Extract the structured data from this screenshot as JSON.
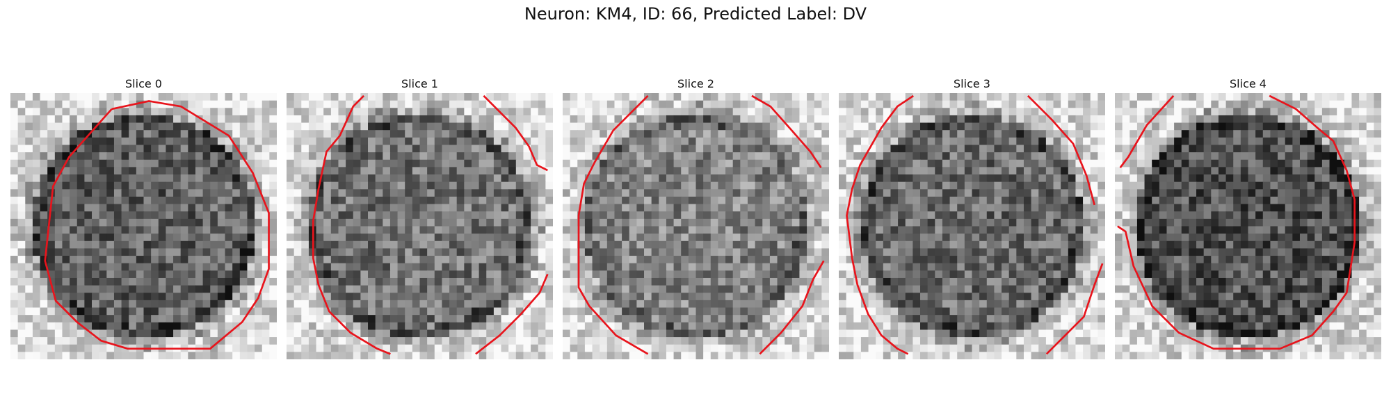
{
  "figure": {
    "title": "Neuron: KM4, ID: 66, Predicted Label: DV"
  },
  "panels": [
    {
      "title": "Slice 0",
      "seed": 11,
      "darkness": 0.62,
      "contours": [
        [
          [
            0.38,
            0.06
          ],
          [
            0.52,
            0.03
          ],
          [
            0.64,
            0.05
          ],
          [
            0.82,
            0.16
          ],
          [
            0.91,
            0.3
          ],
          [
            0.97,
            0.45
          ],
          [
            0.97,
            0.66
          ],
          [
            0.93,
            0.77
          ],
          [
            0.87,
            0.86
          ],
          [
            0.75,
            0.96
          ],
          [
            0.44,
            0.96
          ],
          [
            0.34,
            0.93
          ],
          [
            0.25,
            0.86
          ],
          [
            0.17,
            0.78
          ],
          [
            0.13,
            0.63
          ],
          [
            0.16,
            0.35
          ],
          [
            0.22,
            0.24
          ],
          [
            0.3,
            0.15
          ],
          [
            0.38,
            0.06
          ]
        ]
      ]
    },
    {
      "title": "Slice 1",
      "seed": 23,
      "darkness": 0.55,
      "contours": [
        [
          [
            0.29,
            0.01
          ],
          [
            0.25,
            0.05
          ],
          [
            0.2,
            0.16
          ],
          [
            0.15,
            0.22
          ],
          [
            0.12,
            0.36
          ],
          [
            0.1,
            0.48
          ],
          [
            0.1,
            0.62
          ],
          [
            0.12,
            0.72
          ],
          [
            0.16,
            0.82
          ],
          [
            0.24,
            0.9
          ],
          [
            0.34,
            0.96
          ],
          [
            0.39,
            0.98
          ]
        ],
        [
          [
            0.74,
            0.01
          ],
          [
            0.8,
            0.07
          ],
          [
            0.86,
            0.13
          ],
          [
            0.91,
            0.2
          ],
          [
            0.94,
            0.27
          ],
          [
            0.98,
            0.29
          ]
        ],
        [
          [
            0.98,
            0.68
          ],
          [
            0.95,
            0.75
          ],
          [
            0.88,
            0.83
          ],
          [
            0.8,
            0.91
          ],
          [
            0.71,
            0.98
          ]
        ]
      ]
    },
    {
      "title": "Slice 2",
      "seed": 37,
      "darkness": 0.48,
      "contours": [
        [
          [
            0.32,
            0.01
          ],
          [
            0.19,
            0.14
          ],
          [
            0.12,
            0.26
          ],
          [
            0.08,
            0.34
          ],
          [
            0.06,
            0.46
          ],
          [
            0.06,
            0.73
          ],
          [
            0.1,
            0.8
          ],
          [
            0.2,
            0.91
          ],
          [
            0.32,
            0.98
          ]
        ],
        [
          [
            0.71,
            0.01
          ],
          [
            0.78,
            0.05
          ],
          [
            0.86,
            0.14
          ],
          [
            0.93,
            0.22
          ],
          [
            0.97,
            0.28
          ]
        ],
        [
          [
            0.98,
            0.63
          ],
          [
            0.94,
            0.7
          ],
          [
            0.9,
            0.8
          ],
          [
            0.82,
            0.9
          ],
          [
            0.74,
            0.98
          ]
        ]
      ]
    },
    {
      "title": "Slice 3",
      "seed": 41,
      "darkness": 0.58,
      "contours": [
        [
          [
            0.28,
            0.01
          ],
          [
            0.22,
            0.05
          ],
          [
            0.16,
            0.13
          ],
          [
            0.08,
            0.27
          ],
          [
            0.05,
            0.36
          ],
          [
            0.03,
            0.46
          ],
          [
            0.05,
            0.62
          ],
          [
            0.07,
            0.72
          ],
          [
            0.11,
            0.83
          ],
          [
            0.16,
            0.91
          ],
          [
            0.22,
            0.96
          ],
          [
            0.26,
            0.98
          ]
        ],
        [
          [
            0.71,
            0.01
          ],
          [
            0.8,
            0.1
          ],
          [
            0.88,
            0.19
          ],
          [
            0.93,
            0.31
          ],
          [
            0.96,
            0.42
          ]
        ],
        [
          [
            0.99,
            0.64
          ],
          [
            0.96,
            0.72
          ],
          [
            0.92,
            0.84
          ],
          [
            0.8,
            0.96
          ],
          [
            0.78,
            0.98
          ]
        ]
      ]
    },
    {
      "title": "Slice 4",
      "seed": 53,
      "darkness": 0.68,
      "contours": [
        [
          [
            0.22,
            0.01
          ],
          [
            0.12,
            0.12
          ],
          [
            0.05,
            0.24
          ],
          [
            0.02,
            0.28
          ]
        ],
        [
          [
            0.58,
            0.01
          ],
          [
            0.68,
            0.06
          ],
          [
            0.76,
            0.13
          ],
          [
            0.82,
            0.18
          ],
          [
            0.87,
            0.29
          ],
          [
            0.9,
            0.4
          ],
          [
            0.9,
            0.56
          ],
          [
            0.87,
            0.75
          ],
          [
            0.82,
            0.82
          ],
          [
            0.74,
            0.91
          ],
          [
            0.62,
            0.96
          ],
          [
            0.37,
            0.96
          ],
          [
            0.24,
            0.9
          ],
          [
            0.14,
            0.8
          ],
          [
            0.07,
            0.65
          ],
          [
            0.04,
            0.52
          ],
          [
            0.01,
            0.5
          ]
        ]
      ]
    }
  ]
}
